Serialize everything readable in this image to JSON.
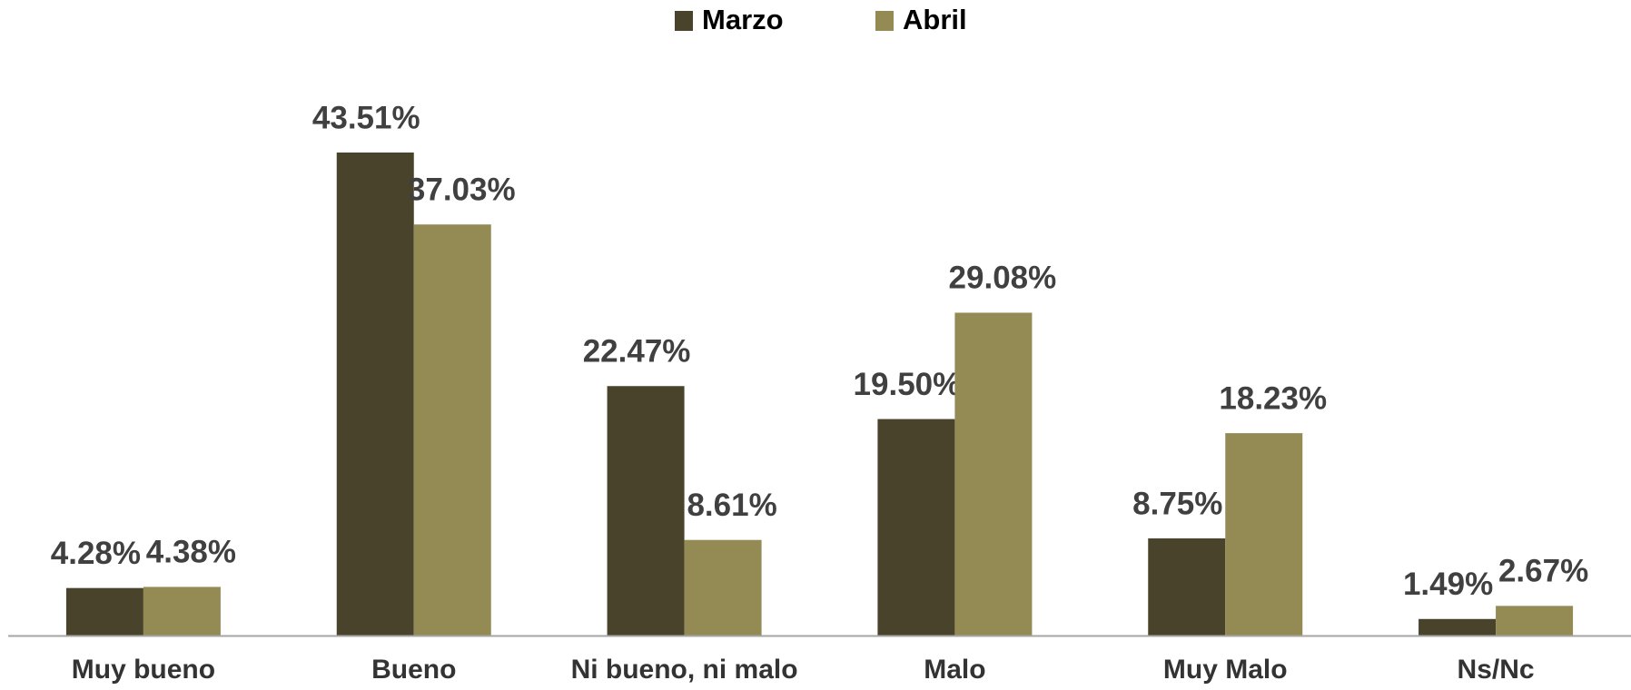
{
  "chart_data": {
    "type": "bar",
    "categories": [
      "Muy bueno",
      "Bueno",
      "Ni bueno, ni malo",
      "Malo",
      "Muy Malo",
      "Ns/Nc"
    ],
    "series": [
      {
        "name": "Marzo",
        "color": "#4a432b",
        "values": [
          4.28,
          43.51,
          22.47,
          19.5,
          8.75,
          1.49
        ],
        "value_labels": [
          "4.28%",
          "43.51%",
          "22.47%",
          "19.50%",
          "8.75%",
          "1.49%"
        ]
      },
      {
        "name": "Abril",
        "color": "#948b54",
        "values": [
          4.38,
          37.03,
          8.61,
          29.08,
          18.23,
          2.67
        ],
        "value_labels": [
          "4.38%",
          "37.03%",
          "8.61%",
          "29.08%",
          "18.23%",
          "2.67%"
        ]
      }
    ],
    "legend": "top"
  }
}
